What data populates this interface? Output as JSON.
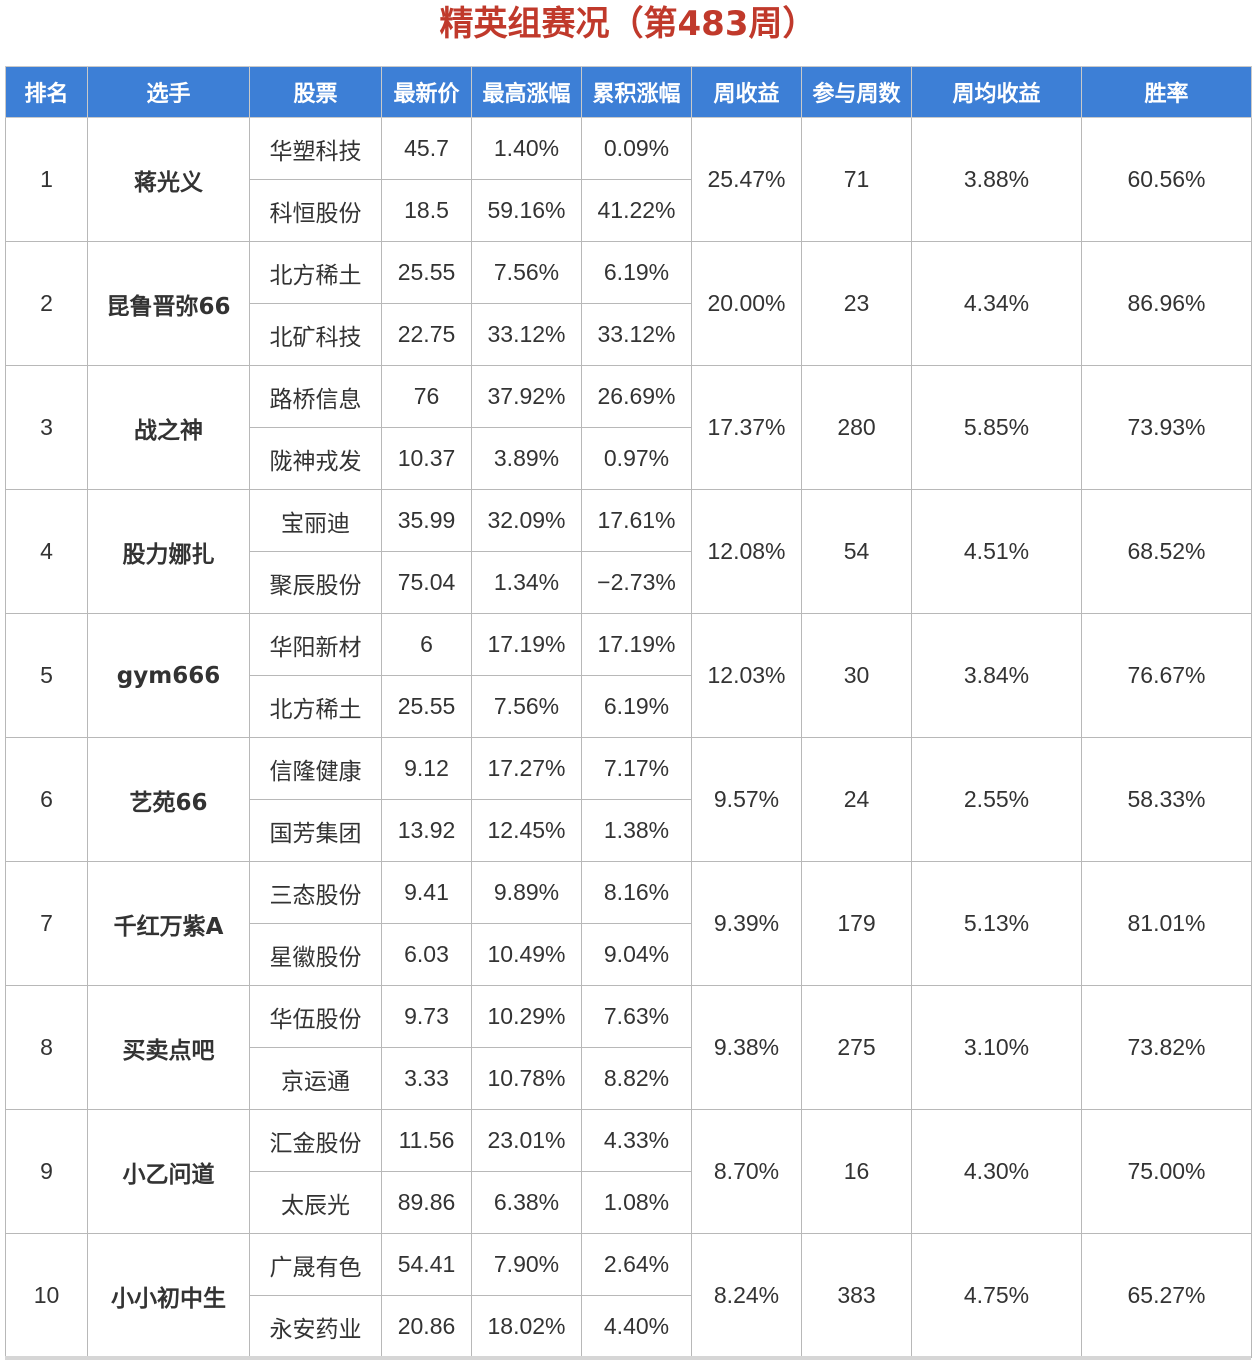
{
  "title": "精英组赛况（第483周）",
  "colors": {
    "header_bg": "#3d7fd6",
    "title": "#c0392b",
    "positive": "#d03030",
    "negative": "#2e7d32",
    "link": "#2f5fa7"
  },
  "headers": {
    "rank": "排名",
    "player": "选手",
    "stock": "股票",
    "price": "最新价",
    "max_gain": "最高涨幅",
    "cum_gain": "累积涨幅",
    "weekly_return": "周收益",
    "weeks": "参与周数",
    "avg_return": "周均收益",
    "win_rate": "胜率"
  },
  "rows": [
    {
      "rank": "1",
      "player": "蒋光义",
      "stocks": [
        {
          "name": "华塑科技",
          "price": "45.7",
          "max_gain": "1.40%",
          "cum_gain": "0.09%"
        },
        {
          "name": "科恒股份",
          "price": "18.5",
          "max_gain": "59.16%",
          "cum_gain": "41.22%"
        }
      ],
      "weekly_return": "25.47%",
      "weeks": "71",
      "avg_return": "3.88%",
      "win_rate": "60.56%"
    },
    {
      "rank": "2",
      "player": "昆鲁晋弥66",
      "stocks": [
        {
          "name": "北方稀土",
          "price": "25.55",
          "max_gain": "7.56%",
          "cum_gain": "6.19%"
        },
        {
          "name": "北矿科技",
          "price": "22.75",
          "max_gain": "33.12%",
          "cum_gain": "33.12%"
        }
      ],
      "weekly_return": "20.00%",
      "weeks": "23",
      "avg_return": "4.34%",
      "win_rate": "86.96%"
    },
    {
      "rank": "3",
      "player": "战之神",
      "stocks": [
        {
          "name": "路桥信息",
          "price": "76",
          "max_gain": "37.92%",
          "cum_gain": "26.69%"
        },
        {
          "name": "陇神戎发",
          "price": "10.37",
          "max_gain": "3.89%",
          "cum_gain": "0.97%"
        }
      ],
      "weekly_return": "17.37%",
      "weeks": "280",
      "avg_return": "5.85%",
      "win_rate": "73.93%"
    },
    {
      "rank": "4",
      "player": "股力娜扎",
      "stocks": [
        {
          "name": "宝丽迪",
          "price": "35.99",
          "max_gain": "32.09%",
          "cum_gain": "17.61%"
        },
        {
          "name": "聚辰股份",
          "price": "75.04",
          "max_gain": "1.34%",
          "cum_gain": "−2.73%"
        }
      ],
      "weekly_return": "12.08%",
      "weeks": "54",
      "avg_return": "4.51%",
      "win_rate": "68.52%"
    },
    {
      "rank": "5",
      "player": "gym666",
      "stocks": [
        {
          "name": "华阳新材",
          "price": "6",
          "max_gain": "17.19%",
          "cum_gain": "17.19%"
        },
        {
          "name": "北方稀土",
          "price": "25.55",
          "max_gain": "7.56%",
          "cum_gain": "6.19%"
        }
      ],
      "weekly_return": "12.03%",
      "weeks": "30",
      "avg_return": "3.84%",
      "win_rate": "76.67%"
    },
    {
      "rank": "6",
      "player": "艺苑66",
      "stocks": [
        {
          "name": "信隆健康",
          "price": "9.12",
          "max_gain": "17.27%",
          "cum_gain": "7.17%"
        },
        {
          "name": "国芳集团",
          "price": "13.92",
          "max_gain": "12.45%",
          "cum_gain": "1.38%"
        }
      ],
      "weekly_return": "9.57%",
      "weeks": "24",
      "avg_return": "2.55%",
      "win_rate": "58.33%"
    },
    {
      "rank": "7",
      "player": "千红万紫A",
      "stocks": [
        {
          "name": "三态股份",
          "price": "9.41",
          "max_gain": "9.89%",
          "cum_gain": "8.16%"
        },
        {
          "name": "星徽股份",
          "price": "6.03",
          "max_gain": "10.49%",
          "cum_gain": "9.04%"
        }
      ],
      "weekly_return": "9.39%",
      "weeks": "179",
      "avg_return": "5.13%",
      "win_rate": "81.01%"
    },
    {
      "rank": "8",
      "player": "买卖点吧",
      "stocks": [
        {
          "name": "华伍股份",
          "price": "9.73",
          "max_gain": "10.29%",
          "cum_gain": "7.63%"
        },
        {
          "name": "京运通",
          "price": "3.33",
          "max_gain": "10.78%",
          "cum_gain": "8.82%"
        }
      ],
      "weekly_return": "9.38%",
      "weeks": "275",
      "avg_return": "3.10%",
      "win_rate": "73.82%"
    },
    {
      "rank": "9",
      "player": "小乙问道",
      "stocks": [
        {
          "name": "汇金股份",
          "price": "11.56",
          "max_gain": "23.01%",
          "cum_gain": "4.33%"
        },
        {
          "name": "太辰光",
          "price": "89.86",
          "max_gain": "6.38%",
          "cum_gain": "1.08%"
        }
      ],
      "weekly_return": "8.70%",
      "weeks": "16",
      "avg_return": "4.30%",
      "win_rate": "75.00%"
    },
    {
      "rank": "10",
      "player": "小小初中生",
      "stocks": [
        {
          "name": "广晟有色",
          "price": "54.41",
          "max_gain": "7.90%",
          "cum_gain": "2.64%"
        },
        {
          "name": "永安药业",
          "price": "20.86",
          "max_gain": "18.02%",
          "cum_gain": "4.40%"
        }
      ],
      "weekly_return": "8.24%",
      "weeks": "383",
      "avg_return": "4.75%",
      "win_rate": "65.27%"
    }
  ]
}
